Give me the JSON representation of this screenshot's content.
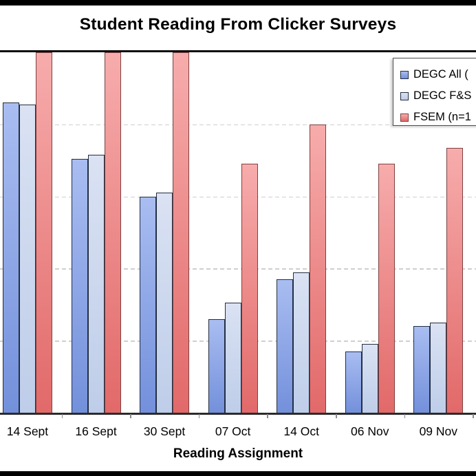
{
  "window": {
    "background": "#FFFFFF",
    "frame_color": "#000000"
  },
  "chart_data": {
    "type": "bar",
    "title": "Student Reading From Clicker Surveys",
    "xlabel": "Reading Assignment",
    "ylabel": "",
    "categories": [
      "14 Sept",
      "16 Sept",
      "30 Sept",
      "07 Oct",
      "14 Oct",
      "06 Nov",
      "09 Nov"
    ],
    "series": [
      {
        "name": "DEGC All (",
        "values": [
          86,
          70.5,
          60,
          26,
          37,
          17,
          24
        ],
        "fill_top": "#A9BDF1",
        "fill_bottom": "#7390DB",
        "stroke": "#222E42"
      },
      {
        "name": "DEGC F&S",
        "values": [
          85.5,
          71.5,
          61,
          30.5,
          39,
          19,
          25
        ],
        "fill_top": "#DAE2F3",
        "fill_bottom": "#BECDE9",
        "stroke": "#222E42"
      },
      {
        "name": "FSEM (n=1",
        "values": [
          100,
          100,
          100,
          69,
          80,
          69,
          73.5
        ],
        "fill_top": "#F7ACAC",
        "fill_bottom": "#E26969",
        "stroke": "#7E4040"
      }
    ],
    "ylim": [
      0,
      100
    ],
    "gridline_values": [
      20,
      40,
      60,
      80
    ],
    "grid_style": "dashed-horizontal",
    "legend_position": "top-right",
    "y_axis_tick_labels_visible": false
  },
  "colors": {
    "gridline": "#CFCFCF",
    "axis_line": "#2B2B2B",
    "plot_border": "#0A0A0A",
    "tick": "#8C8C8C"
  }
}
